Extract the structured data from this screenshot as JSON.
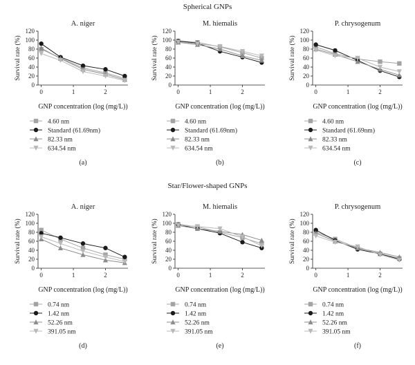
{
  "figure": {
    "section_titles": [
      "Spherical GNPs",
      "Star/Flower-shaped GNPs"
    ]
  },
  "chart_data": [
    {
      "type": "line",
      "panel_label": "(a)",
      "title": "A. niger",
      "xlabel": "GNP concentration (log (mg/L))",
      "ylabel": "Survival rate (%)",
      "xlim": [
        -0.1,
        2.7
      ],
      "ylim": [
        0,
        120
      ],
      "xticks": [
        0,
        1,
        2
      ],
      "yticks": [
        0,
        20,
        40,
        60,
        80,
        100,
        120
      ],
      "x": [
        0,
        0.6,
        1.3,
        2.0,
        2.6
      ],
      "series": [
        {
          "name": "4.60 nm",
          "marker": "square",
          "color": "#a3a3a3",
          "values": [
            80,
            60,
            38,
            27,
            15
          ]
        },
        {
          "name": "Standard (61.69nm)",
          "marker": "circle",
          "color": "#1a1a1a",
          "values": [
            92,
            62,
            43,
            35,
            20
          ]
        },
        {
          "name": "82.33 nm",
          "marker": "triangle-up",
          "color": "#8c8c8c",
          "values": [
            82,
            59,
            35,
            24,
            12
          ]
        },
        {
          "name": "634.54 nm",
          "marker": "triangle-down",
          "color": "#b8b8b8",
          "values": [
            70,
            55,
            30,
            20,
            10
          ]
        }
      ]
    },
    {
      "type": "line",
      "panel_label": "(b)",
      "title": "M. hiemalis",
      "xlabel": "GNP concentration (log (mg/L))",
      "ylabel": "Survival rate (%)",
      "xlim": [
        -0.1,
        2.7
      ],
      "ylim": [
        0,
        120
      ],
      "xticks": [
        0,
        1,
        2
      ],
      "yticks": [
        0,
        20,
        40,
        60,
        80,
        100,
        120
      ],
      "x": [
        0,
        0.6,
        1.3,
        2.0,
        2.6
      ],
      "series": [
        {
          "name": "4.60 nm",
          "marker": "square",
          "color": "#a3a3a3",
          "values": [
            98,
            95,
            85,
            72,
            60
          ]
        },
        {
          "name": "Standard (61.69nm)",
          "marker": "circle",
          "color": "#1a1a1a",
          "values": [
            98,
            93,
            75,
            62,
            50
          ]
        },
        {
          "name": "82.33 nm",
          "marker": "triangle-up",
          "color": "#8c8c8c",
          "values": [
            95,
            90,
            80,
            65,
            55
          ]
        },
        {
          "name": "634.54 nm",
          "marker": "triangle-down",
          "color": "#b8b8b8",
          "values": [
            96,
            92,
            86,
            75,
            65
          ]
        }
      ]
    },
    {
      "type": "line",
      "panel_label": "(c)",
      "title": "P. chrysogenum",
      "xlabel": "GNP concentration (log (mg/L))",
      "ylabel": "Survival rate (%)",
      "xlim": [
        -0.1,
        2.7
      ],
      "ylim": [
        0,
        120
      ],
      "xticks": [
        0,
        1,
        2
      ],
      "yticks": [
        0,
        20,
        40,
        60,
        80,
        100,
        120
      ],
      "x": [
        0,
        0.6,
        1.3,
        2.0,
        2.6
      ],
      "series": [
        {
          "name": "4.60 nm",
          "marker": "square",
          "color": "#a3a3a3",
          "values": [
            85,
            70,
            58,
            52,
            48
          ]
        },
        {
          "name": "Standard (61.69nm)",
          "marker": "circle",
          "color": "#1a1a1a",
          "values": [
            90,
            77,
            55,
            32,
            18
          ]
        },
        {
          "name": "82.33 nm",
          "marker": "triangle-up",
          "color": "#8c8c8c",
          "values": [
            80,
            68,
            52,
            35,
            22
          ]
        },
        {
          "name": "634.54 nm",
          "marker": "triangle-down",
          "color": "#b8b8b8",
          "values": [
            78,
            65,
            60,
            40,
            30
          ]
        }
      ]
    },
    {
      "type": "line",
      "panel_label": "(d)",
      "title": "A. niger",
      "xlabel": "GNP concentration (log (mg/L))",
      "ylabel": "Survival rate (%)",
      "xlim": [
        -0.1,
        2.7
      ],
      "ylim": [
        0,
        120
      ],
      "xticks": [
        0,
        1,
        2
      ],
      "yticks": [
        0,
        20,
        40,
        60,
        80,
        100,
        120
      ],
      "x": [
        0,
        0.6,
        1.3,
        2.0,
        2.6
      ],
      "series": [
        {
          "name": "0.74 nm",
          "marker": "square",
          "color": "#a3a3a3",
          "values": [
            85,
            65,
            45,
            30,
            20
          ]
        },
        {
          "name": "1.42 nm",
          "marker": "circle",
          "color": "#1a1a1a",
          "values": [
            78,
            68,
            55,
            45,
            25
          ]
        },
        {
          "name": "52.26 nm",
          "marker": "triangle-up",
          "color": "#8c8c8c",
          "values": [
            65,
            45,
            30,
            18,
            12
          ]
        },
        {
          "name": "391.05 nm",
          "marker": "triangle-down",
          "color": "#b8b8b8",
          "values": [
            70,
            55,
            38,
            25,
            15
          ]
        }
      ]
    },
    {
      "type": "line",
      "panel_label": "(e)",
      "title": "M. hiemalis",
      "xlabel": "GNP concentration (log (mg/L))",
      "ylabel": "Survival rate (%)",
      "xlim": [
        -0.1,
        2.7
      ],
      "ylim": [
        0,
        120
      ],
      "xticks": [
        0,
        1,
        2
      ],
      "yticks": [
        0,
        20,
        40,
        60,
        80,
        100,
        120
      ],
      "x": [
        0,
        0.6,
        1.3,
        2.0,
        2.6
      ],
      "series": [
        {
          "name": "0.74 nm",
          "marker": "square",
          "color": "#a3a3a3",
          "values": [
            98,
            92,
            80,
            68,
            55
          ]
        },
        {
          "name": "1.42 nm",
          "marker": "circle",
          "color": "#1a1a1a",
          "values": [
            97,
            88,
            78,
            58,
            45
          ]
        },
        {
          "name": "52.26 nm",
          "marker": "triangle-up",
          "color": "#8c8c8c",
          "values": [
            95,
            88,
            82,
            75,
            62
          ]
        },
        {
          "name": "391.05 nm",
          "marker": "triangle-down",
          "color": "#b8b8b8",
          "values": [
            96,
            93,
            88,
            70,
            50
          ]
        }
      ]
    },
    {
      "type": "line",
      "panel_label": "(f)",
      "title": "P. chrysogenum",
      "xlabel": "GNP concentration (log (mg/L))",
      "ylabel": "Survival rate (%)",
      "xlim": [
        -0.1,
        2.7
      ],
      "ylim": [
        0,
        120
      ],
      "xticks": [
        0,
        1,
        2
      ],
      "yticks": [
        0,
        20,
        40,
        60,
        80,
        100,
        120
      ],
      "x": [
        0,
        0.6,
        1.3,
        2.0,
        2.6
      ],
      "series": [
        {
          "name": "0.74 nm",
          "marker": "square",
          "color": "#a3a3a3",
          "values": [
            80,
            65,
            45,
            32,
            22
          ]
        },
        {
          "name": "1.42 nm",
          "marker": "circle",
          "color": "#1a1a1a",
          "values": [
            85,
            62,
            42,
            32,
            20
          ]
        },
        {
          "name": "52.26 nm",
          "marker": "triangle-up",
          "color": "#8c8c8c",
          "values": [
            78,
            60,
            45,
            35,
            25
          ]
        },
        {
          "name": "391.05 nm",
          "marker": "triangle-down",
          "color": "#b8b8b8",
          "values": [
            72,
            58,
            48,
            30,
            18
          ]
        }
      ]
    }
  ]
}
